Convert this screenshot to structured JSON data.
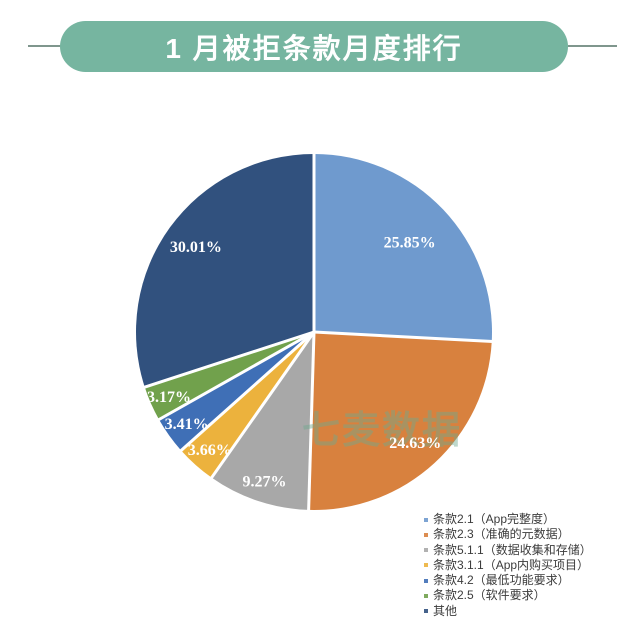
{
  "header": {
    "title": "1 月被拒条款月度排行",
    "pill_color": "#76b5a0",
    "line_color": "#7f968d"
  },
  "watermark": {
    "text": "七麦数据",
    "color": "#70aa8f"
  },
  "chart_data": {
    "type": "pie",
    "title": "1 月被拒条款月度排行",
    "categories": [
      "条款2.1（App完整度）",
      "条款2.3（准确的元数据）",
      "条款5.1.1（数据收集和存储）",
      "条款3.1.1（App内购买项目）",
      "条款4.2（最低功能要求）",
      "条款2.5（软件要求）",
      "其他"
    ],
    "values": [
      25.85,
      24.63,
      9.27,
      3.66,
      3.41,
      3.17,
      30.01
    ],
    "value_labels": [
      "25.85%",
      "24.63%",
      "9.27%",
      "3.66%",
      "3.41%",
      "3.17%",
      "30.01%"
    ],
    "colors": [
      "#6f9ace",
      "#d8813e",
      "#a8a8a8",
      "#ecb23d",
      "#3f6fb6",
      "#71a14c",
      "#31517e"
    ],
    "start_angle_deg": 0,
    "direction": "clockwise",
    "slice_gap_color": "#ffffff",
    "legend_position": "bottom-right",
    "label_radius_factors": [
      0.74,
      0.84,
      0.88,
      0.88,
      0.88,
      0.89,
      0.82
    ]
  }
}
